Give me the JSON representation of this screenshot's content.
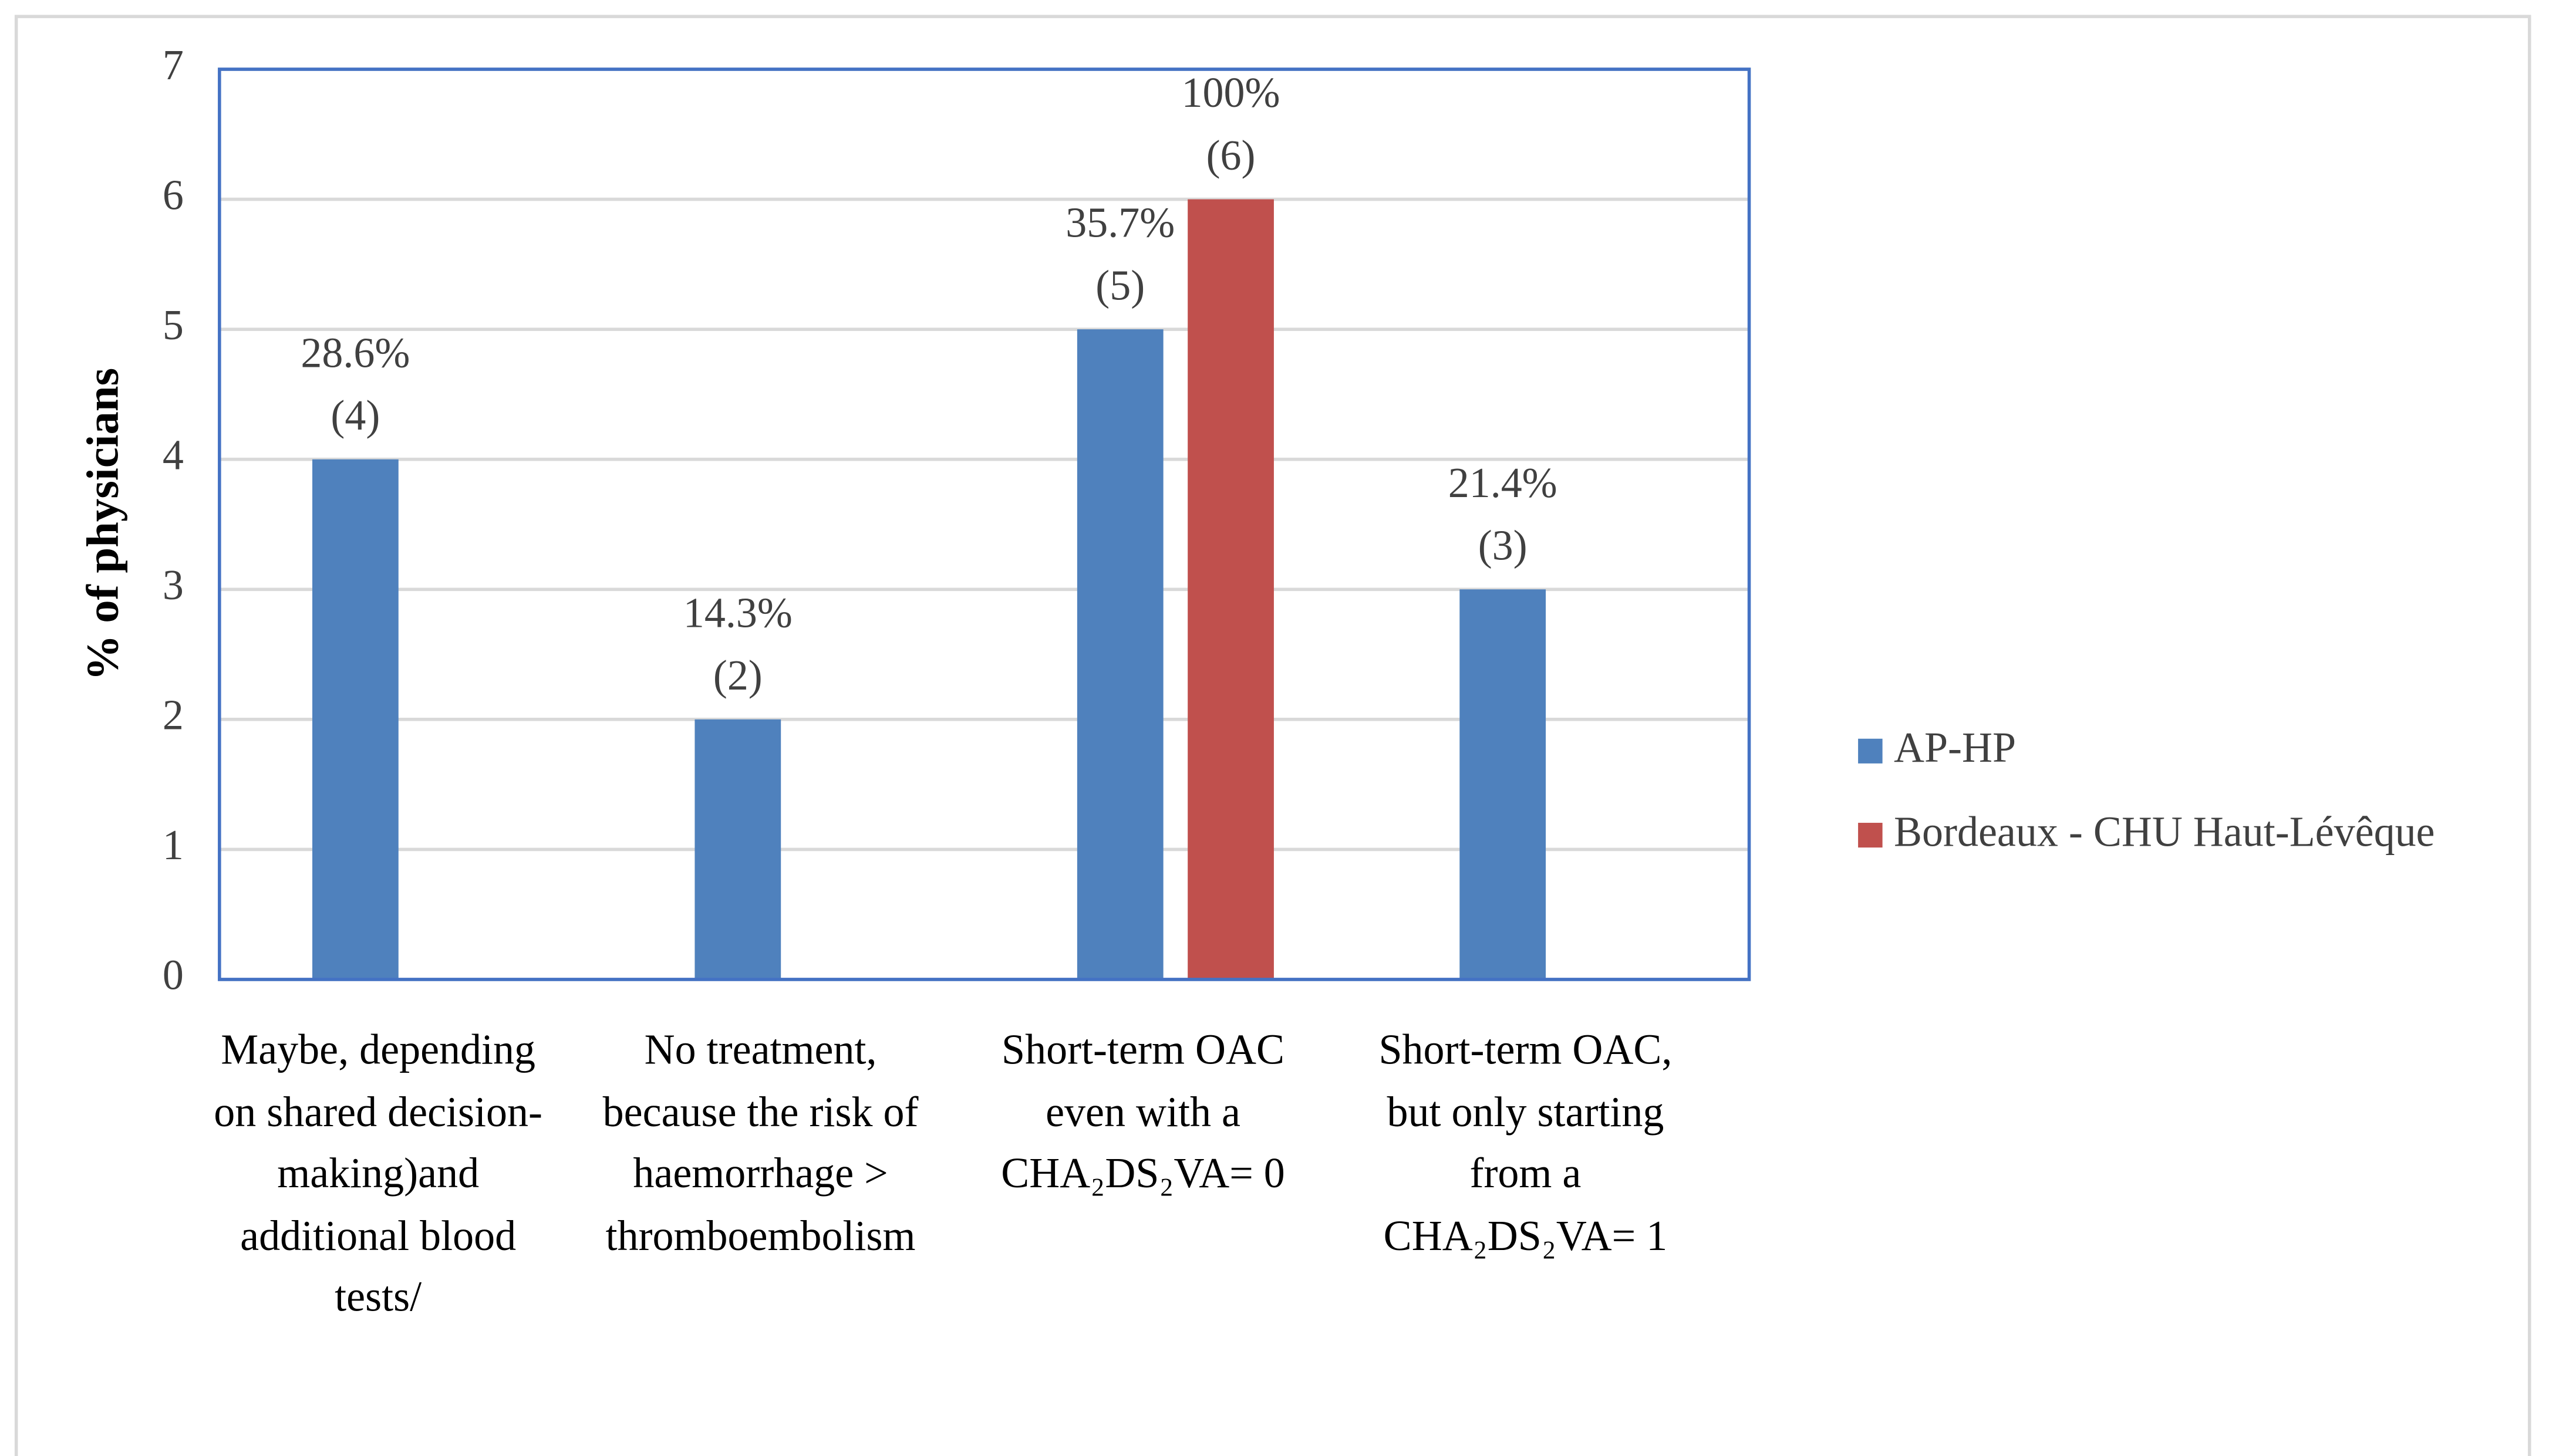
{
  "chart_data": {
    "type": "bar",
    "y_label": "% of physicians",
    "categories": [
      "Maybe, depending on shared decision-making)and additional blood tests/",
      "No treatment, because the risk of haemorrhage > thromboembolism",
      "Short-term OAC even with a CHA₂DS₂VA= 0",
      "Short-term OAC, but only starting from a CHA₂DS₂VA= 1"
    ],
    "series": [
      {
        "name": "AP-HP",
        "color": "#4f81bd",
        "values": [
          4,
          2,
          5,
          3
        ],
        "value_labels": [
          "(4)",
          "(2)",
          "(5)",
          "(3)"
        ],
        "percentages": [
          28.6,
          14.3,
          35.7,
          21.4
        ],
        "percent_labels": [
          "28.6%",
          "14.3%",
          "35.7%",
          "21.4%"
        ]
      },
      {
        "name": "Bordeaux - CHU Haut-Lévêque",
        "color": "#c0504d",
        "values": [
          null,
          null,
          6,
          null
        ],
        "value_labels": [
          null,
          null,
          "(6)",
          null
        ],
        "percentages": [
          null,
          null,
          100,
          null
        ],
        "percent_labels": [
          null,
          null,
          "100%",
          null
        ]
      }
    ],
    "ylim": [
      0,
      7
    ],
    "yticks": [
      0,
      1,
      2,
      3,
      4,
      5,
      6,
      7
    ],
    "grid": true,
    "legend": "right"
  }
}
